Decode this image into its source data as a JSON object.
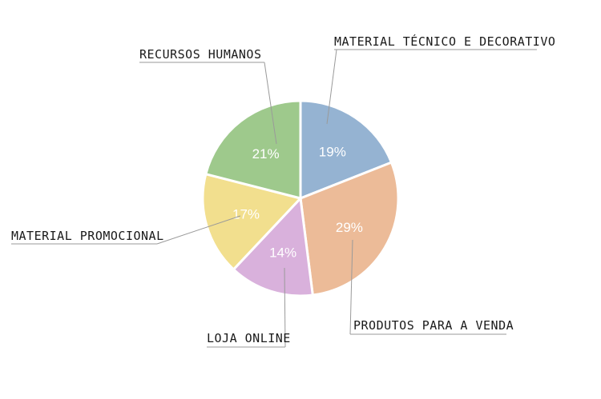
{
  "chart_data": {
    "type": "pie",
    "title": "",
    "slices": [
      {
        "label": "MATERIAL TÉCNICO E DECORATIVO",
        "value": 19,
        "display": "19%",
        "color": "#95b3d2"
      },
      {
        "label": "PRODUTOS PARA A VENDA",
        "value": 29,
        "display": "29%",
        "color": "#ecbb98"
      },
      {
        "label": "LOJA ONLINE",
        "value": 14,
        "display": "14%",
        "color": "#d9b1dc"
      },
      {
        "label": "MATERIAL PROMOCIONAL",
        "value": 17,
        "display": "17%",
        "color": "#f2df8e"
      },
      {
        "label": "RECURSOS HUMANOS",
        "value": 21,
        "display": "21%",
        "color": "#9ec98c"
      }
    ]
  }
}
